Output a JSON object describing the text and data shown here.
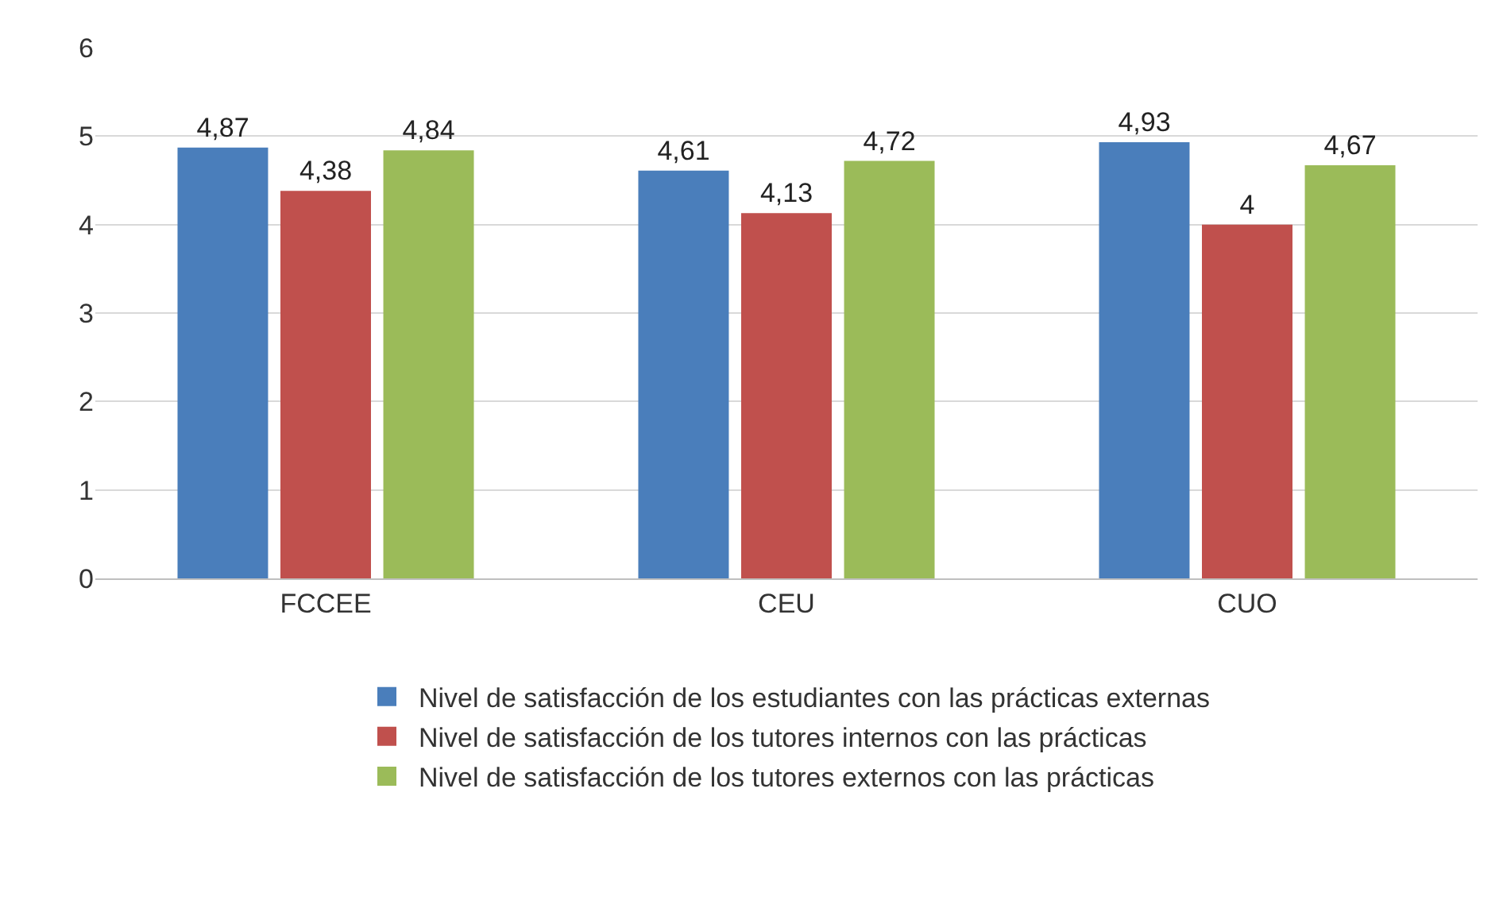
{
  "chart_data": {
    "type": "bar",
    "categories": [
      "FCCEE",
      "CEU",
      "CUO"
    ],
    "series": [
      {
        "name": "Nivel de satisfacción de los estudiantes con las prácticas externas",
        "color": "#4a7ebb",
        "values": [
          4.87,
          4.61,
          4.93
        ],
        "value_labels": [
          "4,87",
          "4,61",
          "4,93"
        ]
      },
      {
        "name": "Nivel de satisfacción de los tutores internos con las prácticas",
        "color": "#c0504d",
        "values": [
          4.38,
          4.13,
          4
        ],
        "value_labels": [
          "4,38",
          "4,13",
          "4"
        ]
      },
      {
        "name": "Nivel de satisfacción de los tutores externos con las prácticas",
        "color": "#9bbb59",
        "values": [
          4.84,
          4.72,
          4.67
        ],
        "value_labels": [
          "4,84",
          "4,72",
          "4,67"
        ]
      }
    ],
    "ylim": [
      0,
      6
    ],
    "yticks": [
      0,
      1,
      2,
      3,
      4,
      5,
      6
    ],
    "grid": "y",
    "legend": "bottom"
  }
}
